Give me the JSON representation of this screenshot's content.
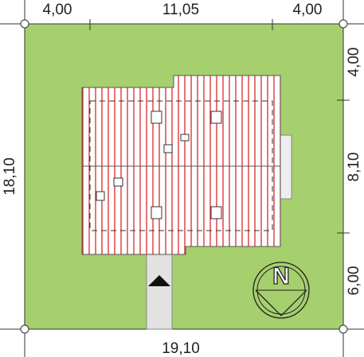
{
  "dimensions": {
    "top": [
      "4,00",
      "11,05",
      "4,00"
    ],
    "left": "18,10",
    "right": [
      "4,00",
      "8,10",
      "6,00"
    ],
    "bottom": "19,10"
  },
  "compass": "N"
}
